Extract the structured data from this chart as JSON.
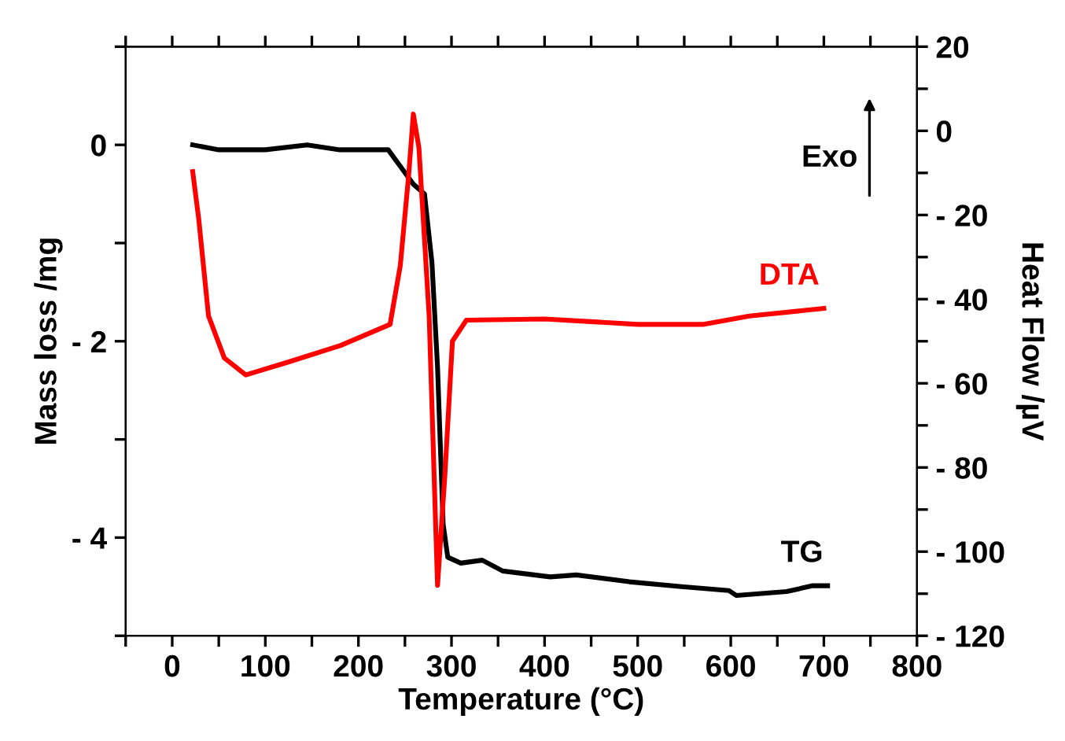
{
  "chart_data": {
    "type": "line",
    "xlabel": "Temperature (°C)",
    "ylabel": "Mass loss /mg",
    "y2label": "Heat Flow /µV",
    "xlim": [
      -50,
      800
    ],
    "xticks": [
      {
        "value": -50,
        "label": null
      },
      0,
      {
        "value": 50,
        "label": null
      },
      100,
      {
        "value": 150,
        "label": null
      },
      200,
      {
        "value": 250,
        "label": null
      },
      300,
      {
        "value": 350,
        "label": null
      },
      400,
      {
        "value": 450,
        "label": null
      },
      500,
      {
        "value": 550,
        "label": null
      },
      600,
      {
        "value": 650,
        "label": null
      },
      700,
      {
        "value": 750,
        "label": null
      },
      800
    ],
    "ylim": [
      -5,
      1
    ],
    "yticks": [
      {
        "value": -5,
        "label": null
      },
      {
        "value": -4,
        "label": "- 4"
      },
      {
        "value": -3,
        "label": null
      },
      {
        "value": -2,
        "label": "- 2"
      },
      {
        "value": -1,
        "label": null
      },
      0,
      {
        "value": 1,
        "label": null
      }
    ],
    "y2lim": [
      -120,
      20
    ],
    "y2ticks": [
      {
        "value": -120,
        "label": "- 120"
      },
      {
        "value": -110,
        "label": null
      },
      {
        "value": -100,
        "label": "- 100"
      },
      {
        "value": -90,
        "label": null
      },
      {
        "value": -80,
        "label": "- 80"
      },
      {
        "value": -70,
        "label": null
      },
      {
        "value": -60,
        "label": "- 60"
      },
      {
        "value": -50,
        "label": null
      },
      {
        "value": -40,
        "label": "- 40"
      },
      {
        "value": -30,
        "label": null
      },
      {
        "value": -20,
        "label": "- 20"
      },
      {
        "value": -10,
        "label": null
      },
      0,
      {
        "value": 10,
        "label": null
      },
      20
    ],
    "grid": false,
    "legend": false,
    "marker": "none",
    "line_style": "solid",
    "series": [
      {
        "name": "TG",
        "color": "#000000",
        "x": [
          22,
          50,
          100,
          145,
          180,
          232,
          259,
          271,
          279,
          285,
          291,
          296,
          310,
          333,
          355,
          406,
          434,
          491,
          547,
          598,
          606,
          660,
          688,
          704
        ],
        "values": [
          0,
          -0.05,
          -0.05,
          0,
          -0.05,
          -0.05,
          -0.4,
          -0.5,
          -1.2,
          -2.26,
          -3.86,
          -4.2,
          -4.26,
          -4.23,
          -4.34,
          -4.4,
          -4.38,
          -4.45,
          -4.5,
          -4.54,
          -4.59,
          -4.55,
          -4.49,
          -4.49
        ]
      },
      {
        "name": "DTA",
        "color": "#ff0000",
        "axis": "y2",
        "x": [
          22,
          28.5,
          39,
          56,
          79,
          124,
          181,
          234,
          245,
          254,
          259,
          265,
          276,
          285,
          293,
          301,
          316,
          400,
          500,
          570,
          620,
          700
        ],
        "values": [
          -9.7,
          -21,
          -44,
          -54,
          -58,
          -55,
          -51,
          -46,
          -32,
          -10.5,
          4,
          -4,
          -44,
          -108,
          -81.5,
          -50,
          -45,
          -44.7,
          -46,
          -46,
          -44,
          -42.2
        ]
      }
    ],
    "annotations": [
      "Exo"
    ]
  }
}
